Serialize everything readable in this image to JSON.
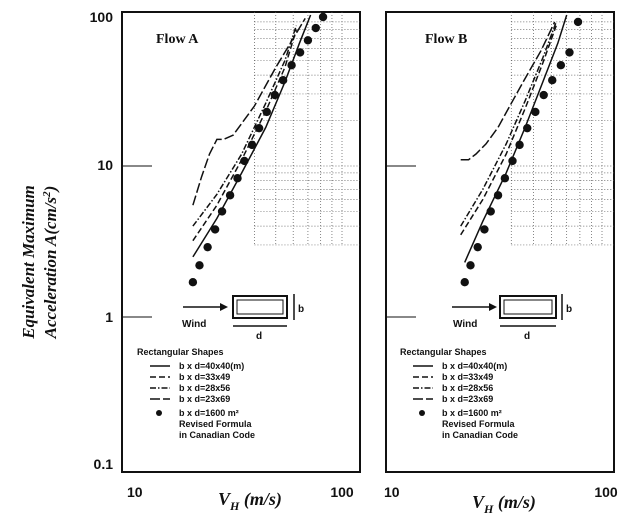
{
  "chart_data": [
    {
      "type": "line",
      "title": "Flow A",
      "xlabel": "V_H (m/s)",
      "ylabel": "Equivalent Maximum Acceleration A(cm/s²)",
      "x_scale": "log",
      "y_scale": "log",
      "xlim": [
        10,
        100
      ],
      "ylim": [
        0.1,
        100
      ],
      "x_ticks": [
        "10",
        "100"
      ],
      "y_ticks": [
        "0.1",
        "1",
        "10",
        "100"
      ],
      "grid": "partial (upper right)",
      "series": [
        {
          "name": "b x d=40x40(m)",
          "style": "solid",
          "x": [
            21,
            27,
            35,
            45,
            55,
            64,
            72
          ],
          "y": [
            2.5,
            4.5,
            9,
            18,
            36,
            65,
            100
          ]
        },
        {
          "name": "b x d=33x49",
          "style": "dashed",
          "x": [
            21,
            27,
            35,
            45,
            55,
            62
          ],
          "y": [
            3.2,
            5.5,
            11,
            23,
            45,
            80
          ]
        },
        {
          "name": "b x d=28x56",
          "style": "dash-dot",
          "x": [
            21,
            27,
            35,
            45,
            55,
            62
          ],
          "y": [
            4,
            6.5,
            12,
            26,
            50,
            85
          ]
        },
        {
          "name": "b x d=23x69",
          "style": "long-dash",
          "x": [
            21,
            23,
            25,
            27,
            29,
            32,
            40,
            50,
            60,
            68
          ],
          "y": [
            5.5,
            8.5,
            12,
            15,
            15,
            16,
            25,
            45,
            70,
            95
          ]
        },
        {
          "name": "b x d=1600 m² Revised Formula in Canadian Code",
          "style": "dots",
          "x": [
            21,
            22.5,
            24.5,
            26.5,
            28.5,
            31,
            33.5,
            36,
            39,
            42,
            45.5,
            49.5,
            54,
            59,
            64.5,
            70,
            76,
            82
          ],
          "y": [
            1.7,
            2.2,
            2.9,
            3.8,
            5,
            6.4,
            8.3,
            10.8,
            13.8,
            17.8,
            22.8,
            29.5,
            37,
            46.5,
            56.5,
            68,
            82,
            97
          ]
        }
      ]
    },
    {
      "type": "line",
      "title": "Flow B",
      "xlabel": "V_H (m/s)",
      "x_scale": "log",
      "y_scale": "log",
      "xlim": [
        10,
        100
      ],
      "ylim": [
        0.1,
        100
      ],
      "x_ticks": [
        "10",
        "100"
      ],
      "grid": "partial (upper right)",
      "series": [
        {
          "name": "b x d=40x40(m)",
          "style": "solid",
          "x": [
            25,
            30,
            38,
            46,
            55,
            64,
            70
          ],
          "y": [
            2.3,
            4.3,
            9,
            18,
            36,
            65,
            100
          ]
        },
        {
          "name": "b x d=33x49",
          "style": "dashed",
          "x": [
            24,
            30,
            38,
            46,
            55,
            63
          ],
          "y": [
            3.5,
            6,
            12,
            24,
            48,
            85
          ]
        },
        {
          "name": "b x d=28x56",
          "style": "dash-dot",
          "x": [
            24,
            30,
            38,
            46,
            55,
            63
          ],
          "y": [
            4,
            7,
            14,
            27,
            52,
            90
          ]
        },
        {
          "name": "b x d=23x69",
          "style": "long-dash",
          "x": [
            24,
            26,
            28,
            31,
            35,
            40,
            46,
            54,
            62
          ],
          "y": [
            11,
            11,
            12,
            14,
            18,
            26,
            38,
            58,
            90
          ]
        },
        {
          "name": "b x d=1600 m² Revised Formula in Canadian Code",
          "style": "dots",
          "x": [
            25,
            26.5,
            28.5,
            30.5,
            32.5,
            35,
            37.5,
            40.5,
            43.5,
            47,
            51,
            55.5,
            60.5,
            66,
            72,
            78.5
          ],
          "y": [
            1.7,
            2.2,
            2.9,
            3.8,
            5,
            6.4,
            8.3,
            10.8,
            13.8,
            17.8,
            22.8,
            29.5,
            37,
            46.5,
            56.5,
            90
          ]
        }
      ]
    }
  ],
  "labels": {
    "ylabel_line1": "Equivalent Maximum",
    "ylabel_line2": "Acceleration  A(cm/s",
    "ylabel_sup": "2",
    "ylabel_close": ")",
    "xlabel_main": "V",
    "xlabel_sub": "H",
    "xlabel_unit": " (m/s)",
    "y_ticks": [
      "100",
      "10",
      "1",
      "0.1"
    ],
    "x_tick_low": "10",
    "x_tick_high": "100"
  },
  "panels": [
    {
      "title": "Flow A",
      "wind": "Wind",
      "b": "b",
      "d": "d"
    },
    {
      "title": "Flow B",
      "wind": "Wind",
      "b": "b",
      "d": "d"
    }
  ],
  "legend": {
    "heading": "Rectangular Shapes",
    "items": [
      "b x d=40x40(m)",
      "b x d=33x49",
      "b x d=28x56",
      "b x d=23x69"
    ],
    "dot_lines": [
      "b x d=1600 m²",
      "Revised Formula",
      "in Canadian Code"
    ]
  }
}
